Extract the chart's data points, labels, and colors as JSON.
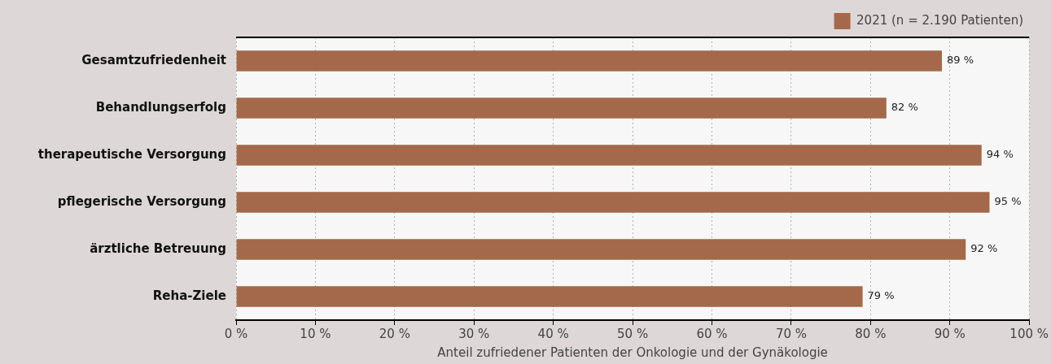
{
  "chart_data": {
    "type": "bar",
    "orientation": "horizontal",
    "categories": [
      "Gesamtzufriedenheit",
      "Behandlungserfolg",
      "therapeutische Versorgung",
      "pflegerische Versorgung",
      "ärztliche Betreuung",
      "Reha-Ziele"
    ],
    "series": [
      {
        "name": "2021 (n = 2.190 Patienten)",
        "color": "#a3694a",
        "values": [
          89,
          82,
          94,
          95,
          92,
          79
        ],
        "value_labels": [
          "89 %",
          "82 %",
          "94 %",
          "95 %",
          "92 %",
          "79 %"
        ]
      }
    ],
    "xlabel": "Anteil zufriedener Patienten der Onkologie und der Gynäkologie",
    "xlim": [
      0,
      100
    ],
    "xticks": [
      {
        "value": 0,
        "label": "0 %"
      },
      {
        "value": 10,
        "label": "10 %"
      },
      {
        "value": 20,
        "label": "20 %"
      },
      {
        "value": 30,
        "label": "30 %"
      },
      {
        "value": 40,
        "label": "40 %"
      },
      {
        "value": 50,
        "label": "50 %"
      },
      {
        "value": 60,
        "label": "60 %"
      },
      {
        "value": 70,
        "label": "70 %"
      },
      {
        "value": 80,
        "label": "80 %"
      },
      {
        "value": 90,
        "label": "90 %"
      },
      {
        "value": 100,
        "label": "100 %"
      }
    ],
    "grid": "x",
    "legend": "top right"
  }
}
